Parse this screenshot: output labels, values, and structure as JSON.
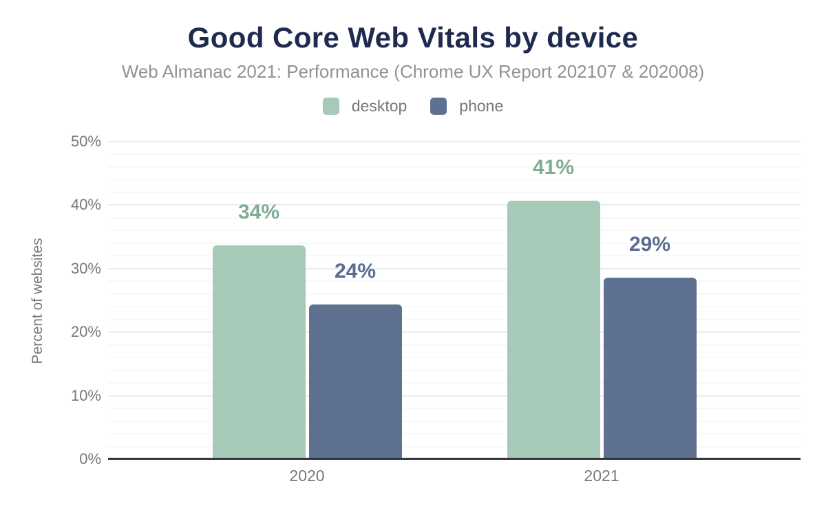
{
  "header": {
    "title": "Good Core Web Vitals by device",
    "subtitle": "Web Almanac 2021: Performance (Chrome UX Report 202107 & 202008)"
  },
  "chart_data": {
    "type": "bar",
    "title": "Good Core Web Vitals by device",
    "subtitle": "Web Almanac 2021: Performance (Chrome UX Report 202107 & 202008)",
    "categories": [
      "2020",
      "2021"
    ],
    "series": [
      {
        "name": "desktop",
        "color": "#a7c9b7",
        "label_color": "#7fac95",
        "values": [
          33.5,
          40.6
        ],
        "labels": [
          "34%",
          "41%"
        ]
      },
      {
        "name": "phone",
        "color": "#5f7190",
        "label_color": "#5a6d90",
        "values": [
          24.2,
          28.5
        ],
        "labels": [
          "24%",
          "29%"
        ]
      }
    ],
    "xlabel": "",
    "ylabel": "Percent of websites",
    "ylim": [
      0,
      50
    ],
    "ytick_step": 10,
    "minor_grid_step": 2,
    "ytick_labels": [
      "0%",
      "10%",
      "20%",
      "30%",
      "40%",
      "50%"
    ],
    "grid": true,
    "legend_position": "top"
  },
  "colors": {
    "title": "#1e2a4e",
    "subtitle": "#8f9397",
    "axis_text": "#76797d",
    "axis_line": "#35373a",
    "grid_major": "#ececec",
    "grid_minor": "#f8f8f8"
  }
}
